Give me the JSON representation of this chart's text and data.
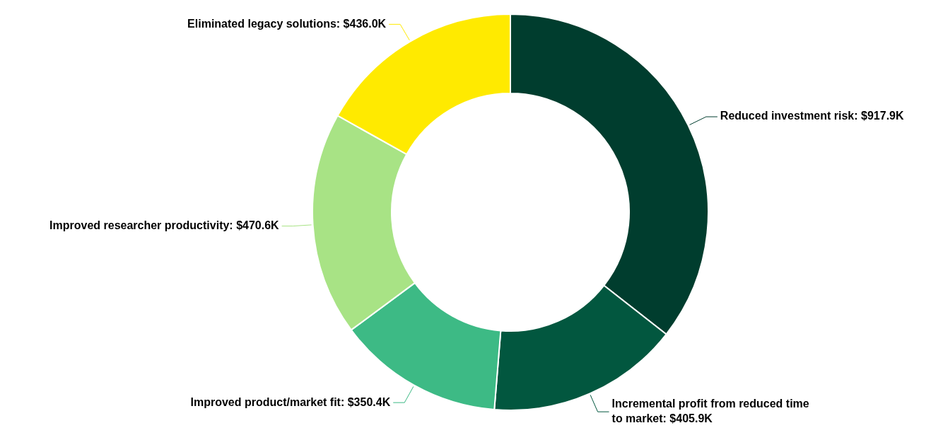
{
  "chart_data": {
    "type": "donut",
    "categories": [
      "Reduced investment risk",
      "Incremental profit from reduced time to market",
      "Improved product/market fit",
      "Improved researcher productivity",
      "Eliminated legacy solutions"
    ],
    "values": [
      917.9,
      405.9,
      350.4,
      470.6,
      436.0
    ],
    "value_labels": [
      "$917.9K",
      "$405.9K",
      "$350.4K",
      "$470.6K",
      "$436.0K"
    ],
    "colors": [
      "#003d2e",
      "#02573f",
      "#3dba85",
      "#a8e385",
      "#ffea00"
    ],
    "legend": false
  }
}
